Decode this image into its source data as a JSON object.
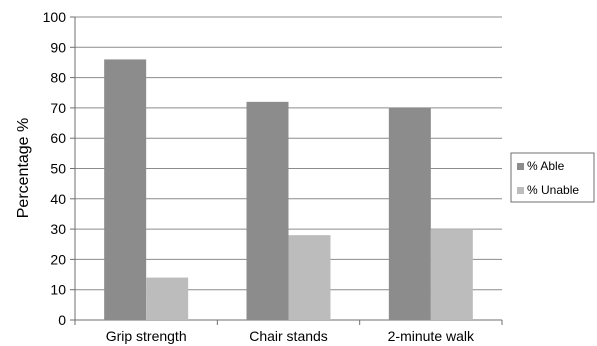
{
  "chart_data": {
    "type": "bar",
    "title": "",
    "xlabel": "",
    "ylabel": "Percentage  %",
    "ylim": [
      0,
      100
    ],
    "yticks": [
      0,
      10,
      20,
      30,
      40,
      50,
      60,
      70,
      80,
      90,
      100
    ],
    "grid": true,
    "legend_position": "right",
    "categories": [
      "Grip strength",
      "Chair stands",
      "2-minute walk"
    ],
    "series": [
      {
        "name": "% Able",
        "values": [
          86,
          72,
          70
        ],
        "color": "#8c8c8c"
      },
      {
        "name": "% Unable",
        "values": [
          14,
          28,
          30
        ],
        "color": "#bcbcbc"
      }
    ]
  }
}
